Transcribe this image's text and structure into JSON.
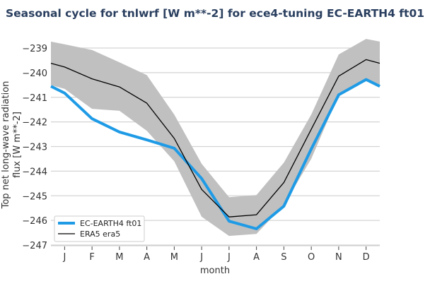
{
  "chart_data": {
    "type": "line",
    "title": "Seasonal cycle for tnlwrf [W m**-2] for ece4-tuning EC-EARTH4 ft01",
    "xlabel": "month",
    "ylabel": "Top net long-wave radiation flux [W m**-2]",
    "categories": [
      "J",
      "F",
      "M",
      "A",
      "M",
      "J",
      "J",
      "A",
      "S",
      "O",
      "N",
      "D"
    ],
    "ylim": [
      -247,
      -238.75
    ],
    "yticks": [
      -239,
      -240,
      -241,
      -242,
      -243,
      -244,
      -245,
      -246,
      -247
    ],
    "grid": "horizontal",
    "legend_position": "bottom-left",
    "series": [
      {
        "name": "EC-EARTH4 ft01",
        "color": "#1f9be6",
        "values": [
          -240.83,
          -241.87,
          -242.41,
          -242.73,
          -243.07,
          -244.3,
          -246.03,
          -246.34,
          -245.42,
          -243.1,
          -240.9,
          -240.28
        ]
      },
      {
        "name": "ERA5 era5",
        "color": "#000000",
        "values": [
          -239.77,
          -240.25,
          -240.58,
          -241.24,
          -242.67,
          -244.74,
          -245.86,
          -245.77,
          -244.46,
          -242.3,
          -240.14,
          -239.47
        ]
      }
    ],
    "band": {
      "color": "#c0c0c0",
      "upper": [
        -238.85,
        -239.08,
        -239.58,
        -240.1,
        -241.7,
        -243.7,
        -245.06,
        -244.97,
        -243.65,
        -241.7,
        -239.26,
        -238.63
      ],
      "lower": [
        -240.66,
        -241.47,
        -241.55,
        -242.36,
        -243.6,
        -245.85,
        -246.63,
        -246.55,
        -245.37,
        -243.5,
        -240.9,
        -240.35
      ]
    }
  }
}
